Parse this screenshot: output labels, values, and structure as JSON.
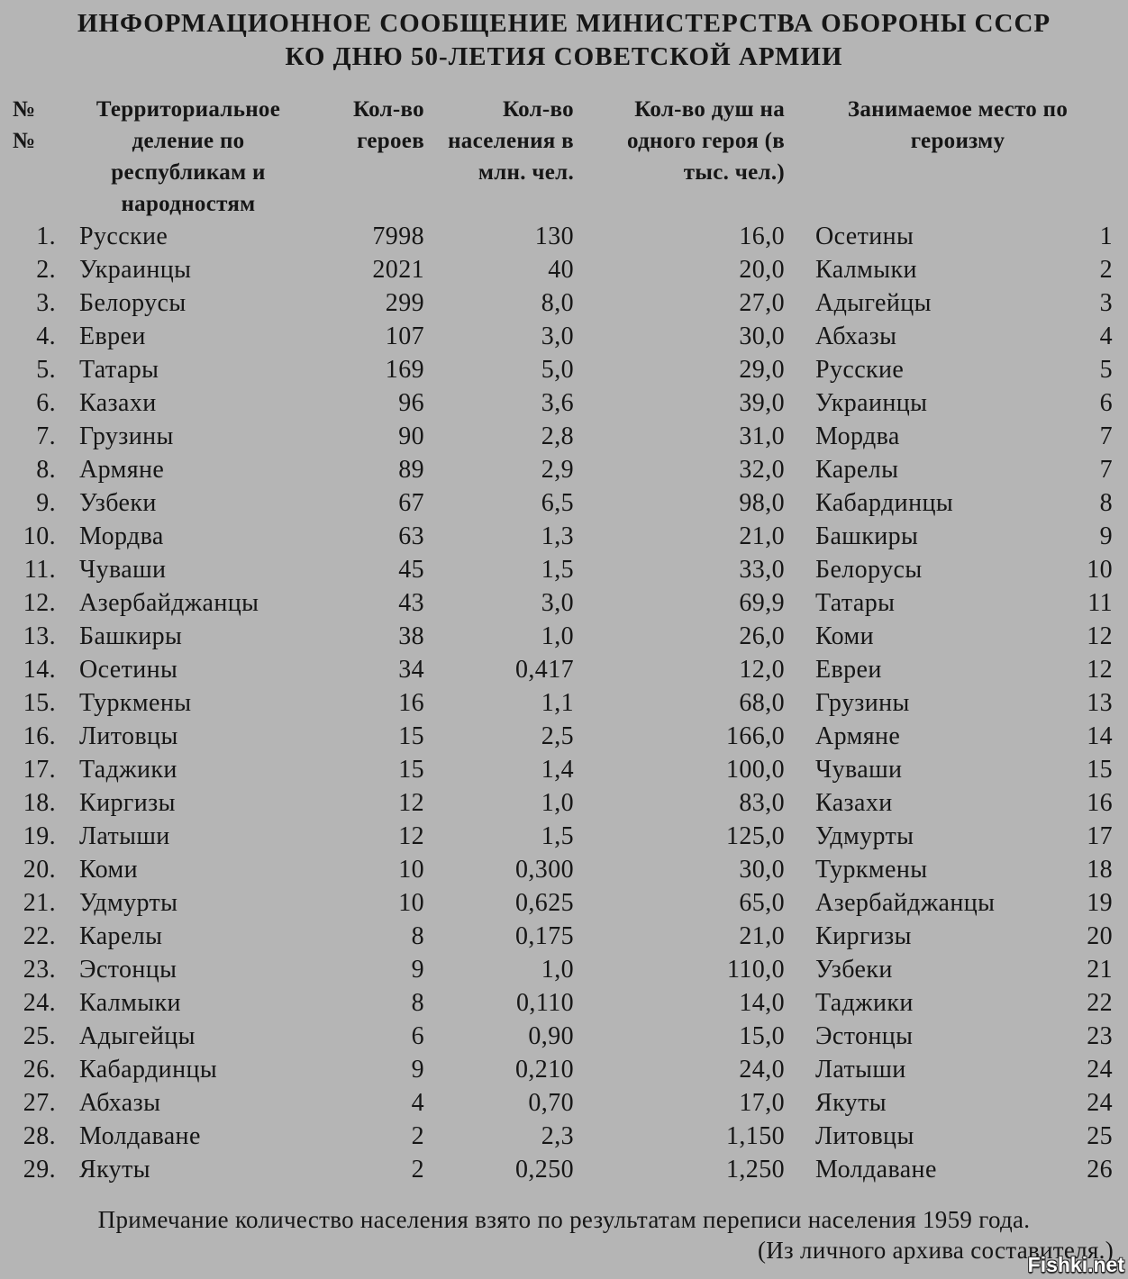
{
  "title": {
    "line1": "ИНФОРМАЦИОННОЕ СООБЩЕНИЕ МИНИСТЕРСТВА ОБОРОНЫ СССР",
    "line2": "КО ДНЮ 50-ЛЕТИЯ СОВЕТСКОЙ АРМИИ"
  },
  "table": {
    "headers": {
      "num": "№\n№",
      "territory": "Территориальное\nделение по\nреспубликам и\nнародностям",
      "heroes": "Кол-во\nгероев",
      "population": "Кол-во\nнаселения в\nмлн. чел.",
      "per_hero": "Кол-во душ на\nодного героя (в\nтыс. чел.)",
      "rank": "Занимаемое место по\nгероизму"
    },
    "rows": [
      {
        "n": "1.",
        "name": "Русские",
        "heroes": "7998",
        "pop": "130",
        "per": "16,0",
        "rname": "Осетины",
        "rrank": "1"
      },
      {
        "n": "2.",
        "name": "Украинцы",
        "heroes": "2021",
        "pop": "40",
        "per": "20,0",
        "rname": "Калмыки",
        "rrank": "2"
      },
      {
        "n": "3.",
        "name": "Белорусы",
        "heroes": "299",
        "pop": "8,0",
        "per": "27,0",
        "rname": "Адыгейцы",
        "rrank": "3"
      },
      {
        "n": "4.",
        "name": "Евреи",
        "heroes": "107",
        "pop": "3,0",
        "per": "30,0",
        "rname": "Абхазы",
        "rrank": "4"
      },
      {
        "n": "5.",
        "name": "Татары",
        "heroes": "169",
        "pop": "5,0",
        "per": "29,0",
        "rname": "Русские",
        "rrank": "5"
      },
      {
        "n": "6.",
        "name": "Казахи",
        "heroes": "96",
        "pop": "3,6",
        "per": "39,0",
        "rname": "Украинцы",
        "rrank": "6"
      },
      {
        "n": "7.",
        "name": "Грузины",
        "heroes": "90",
        "pop": "2,8",
        "per": "31,0",
        "rname": "Мордва",
        "rrank": "7"
      },
      {
        "n": "8.",
        "name": "Армяне",
        "heroes": "89",
        "pop": "2,9",
        "per": "32,0",
        "rname": "Карелы",
        "rrank": "7"
      },
      {
        "n": "9.",
        "name": "Узбеки",
        "heroes": "67",
        "pop": "6,5",
        "per": "98,0",
        "rname": "Кабардинцы",
        "rrank": "8"
      },
      {
        "n": "10.",
        "name": "Мордва",
        "heroes": "63",
        "pop": "1,3",
        "per": "21,0",
        "rname": "Башкиры",
        "rrank": "9"
      },
      {
        "n": "11.",
        "name": "Чуваши",
        "heroes": "45",
        "pop": "1,5",
        "per": "33,0",
        "rname": "Белорусы",
        "rrank": "10"
      },
      {
        "n": "12.",
        "name": "Азербайджанцы",
        "heroes": "43",
        "pop": "3,0",
        "per": "69,9",
        "rname": "Татары",
        "rrank": "11"
      },
      {
        "n": "13.",
        "name": "Башкиры",
        "heroes": "38",
        "pop": "1,0",
        "per": "26,0",
        "rname": "Коми",
        "rrank": "12"
      },
      {
        "n": "14.",
        "name": "Осетины",
        "heroes": "34",
        "pop": "0,417",
        "per": "12,0",
        "rname": "Евреи",
        "rrank": "12"
      },
      {
        "n": "15.",
        "name": "Туркмены",
        "heroes": "16",
        "pop": "1,1",
        "per": "68,0",
        "rname": "Грузины",
        "rrank": "13"
      },
      {
        "n": "16.",
        "name": "Литовцы",
        "heroes": "15",
        "pop": "2,5",
        "per": "166,0",
        "rname": "Армяне",
        "rrank": "14"
      },
      {
        "n": "17.",
        "name": "Таджики",
        "heroes": "15",
        "pop": "1,4",
        "per": "100,0",
        "rname": "Чуваши",
        "rrank": "15"
      },
      {
        "n": "18.",
        "name": "Киргизы",
        "heroes": "12",
        "pop": "1,0",
        "per": "83,0",
        "rname": "Казахи",
        "rrank": "16"
      },
      {
        "n": "19.",
        "name": "Латыши",
        "heroes": "12",
        "pop": "1,5",
        "per": "125,0",
        "rname": "Удмурты",
        "rrank": "17"
      },
      {
        "n": "20.",
        "name": "Коми",
        "heroes": "10",
        "pop": "0,300",
        "per": "30,0",
        "rname": "Туркмены",
        "rrank": "18"
      },
      {
        "n": "21.",
        "name": "Удмурты",
        "heroes": "10",
        "pop": "0,625",
        "per": "65,0",
        "rname": "Азербайджанцы",
        "rrank": "19"
      },
      {
        "n": "22.",
        "name": "Карелы",
        "heroes": "8",
        "pop": "0,175",
        "per": "21,0",
        "rname": "Киргизы",
        "rrank": "20"
      },
      {
        "n": "23.",
        "name": "Эстонцы",
        "heroes": "9",
        "pop": "1,0",
        "per": "110,0",
        "rname": "Узбеки",
        "rrank": "21"
      },
      {
        "n": "24.",
        "name": "Калмыки",
        "heroes": "8",
        "pop": "0,110",
        "per": "14,0",
        "rname": "Таджики",
        "rrank": "22"
      },
      {
        "n": "25.",
        "name": "Адыгейцы",
        "heroes": "6",
        "pop": "0,90",
        "per": "15,0",
        "rname": "Эстонцы",
        "rrank": "23"
      },
      {
        "n": "26.",
        "name": "Кабардинцы",
        "heroes": "9",
        "pop": "0,210",
        "per": "24,0",
        "rname": "Латыши",
        "rrank": "24"
      },
      {
        "n": "27.",
        "name": "Абхазы",
        "heroes": "4",
        "pop": "0,70",
        "per": "17,0",
        "rname": "Якуты",
        "rrank": "24"
      },
      {
        "n": "28.",
        "name": "Молдаване",
        "heroes": "2",
        "pop": "2,3",
        "per": "1,150",
        "rname": "Литовцы",
        "rrank": "25"
      },
      {
        "n": "29.",
        "name": "Якуты",
        "heroes": "2",
        "pop": "0,250",
        "per": "1,250",
        "rname": "Молдаване",
        "rrank": "26"
      }
    ]
  },
  "footer": {
    "note": "Примечание количество населения взято по результатам переписи населения 1959 года.",
    "archive": "(Из личного архива составителя.)"
  },
  "watermark": "Fishki.net",
  "colors": {
    "background": "#b5b5b5",
    "text": "#161616",
    "watermark_fill": "#ffffff",
    "watermark_outline": "#2a2a2a"
  }
}
